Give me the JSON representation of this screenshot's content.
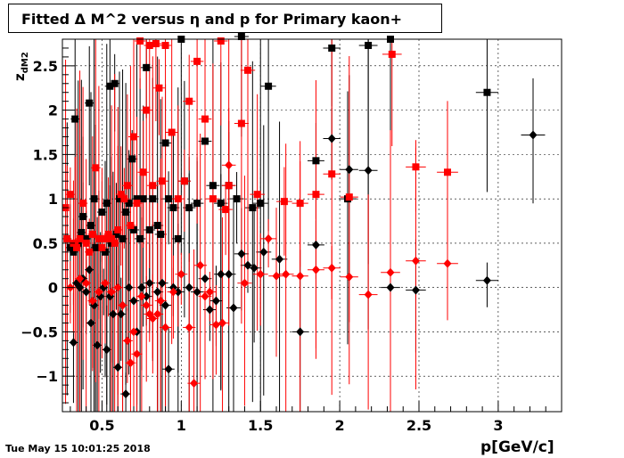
{
  "title": "Fitted Δ M^2 versus η and p for Primary kaon+",
  "timestamp": "Tue May 15 10:01:25 2018",
  "chart_data": {
    "type": "scatter",
    "xlabel": "p[GeV/c]",
    "ylabel": "z_dM2",
    "xlim": [
      0.25,
      3.4
    ],
    "ylim": [
      -1.4,
      2.8
    ],
    "xticks": [
      0.5,
      1,
      1.5,
      2,
      2.5,
      3
    ],
    "xtick_labels": [
      "0.5",
      "1",
      "1.5",
      "2",
      "2.5",
      "3"
    ],
    "yticks": [
      -1,
      -0.5,
      0,
      0.5,
      1,
      1.5,
      2,
      2.5
    ],
    "ytick_labels": [
      "−1",
      "−0.5",
      "0",
      "0.5",
      "1",
      "1.5",
      "2",
      "2.5"
    ],
    "grid": true,
    "colors": {
      "black": "#000000",
      "red": "#ff0000"
    },
    "series": [
      {
        "color": "black",
        "marker": "square",
        "points": [
          [
            0.28,
            0.55
          ],
          [
            0.3,
            0.45
          ],
          [
            0.32,
            0.4
          ],
          [
            0.33,
            1.9
          ],
          [
            0.35,
            0.5
          ],
          [
            0.37,
            0.62
          ],
          [
            0.38,
            0.8
          ],
          [
            0.4,
            0.55
          ],
          [
            0.42,
            2.08
          ],
          [
            0.43,
            0.7
          ],
          [
            0.45,
            1.0
          ],
          [
            0.46,
            0.45
          ],
          [
            0.48,
            0.55
          ],
          [
            0.5,
            0.85
          ],
          [
            0.52,
            0.4
          ],
          [
            0.53,
            0.95
          ],
          [
            0.55,
            2.27
          ],
          [
            0.56,
            0.5
          ],
          [
            0.58,
            2.3
          ],
          [
            0.59,
            0.6
          ],
          [
            0.61,
            1.0
          ],
          [
            0.63,
            0.55
          ],
          [
            0.65,
            0.85
          ],
          [
            0.67,
            0.95
          ],
          [
            0.69,
            1.45
          ],
          [
            0.7,
            0.65
          ],
          [
            0.72,
            1.0
          ],
          [
            0.74,
            0.55
          ],
          [
            0.76,
            1.0
          ],
          [
            0.78,
            2.48
          ],
          [
            0.8,
            0.65
          ],
          [
            0.82,
            1.0
          ],
          [
            0.85,
            0.7
          ],
          [
            0.87,
            0.6
          ],
          [
            0.9,
            1.63
          ],
          [
            0.92,
            1.0
          ],
          [
            0.95,
            0.9
          ],
          [
            0.98,
            0.55
          ],
          [
            1.0,
            2.8
          ],
          [
            1.02,
            1.2
          ],
          [
            1.05,
            0.9
          ],
          [
            1.1,
            0.95
          ],
          [
            1.15,
            1.65
          ],
          [
            1.2,
            1.15
          ],
          [
            1.25,
            0.95
          ],
          [
            1.3,
            1.15
          ],
          [
            1.35,
            1.0
          ],
          [
            1.38,
            2.83
          ],
          [
            1.45,
            0.9
          ],
          [
            1.5,
            0.95
          ],
          [
            1.55,
            2.27
          ],
          [
            1.85,
            1.43
          ],
          [
            1.95,
            2.7
          ],
          [
            2.05,
            1.0
          ],
          [
            2.18,
            2.73
          ],
          [
            2.32,
            2.8
          ],
          [
            2.93,
            2.2
          ]
        ]
      },
      {
        "color": "black",
        "marker": "diamond",
        "points": [
          [
            0.32,
            -0.62
          ],
          [
            0.34,
            0.05
          ],
          [
            0.36,
            0.0
          ],
          [
            0.38,
            0.1
          ],
          [
            0.4,
            -0.05
          ],
          [
            0.42,
            0.2
          ],
          [
            0.43,
            -0.4
          ],
          [
            0.45,
            -0.2
          ],
          [
            0.47,
            -0.65
          ],
          [
            0.49,
            -0.1
          ],
          [
            0.51,
            0.0
          ],
          [
            0.53,
            -0.7
          ],
          [
            0.55,
            -0.1
          ],
          [
            0.57,
            -0.3
          ],
          [
            0.6,
            -0.9
          ],
          [
            0.62,
            -0.3
          ],
          [
            0.65,
            -1.2
          ],
          [
            0.67,
            0.0
          ],
          [
            0.7,
            -0.15
          ],
          [
            0.72,
            -0.5
          ],
          [
            0.75,
            0.0
          ],
          [
            0.78,
            -0.1
          ],
          [
            0.8,
            0.05
          ],
          [
            0.85,
            -0.05
          ],
          [
            0.88,
            0.05
          ],
          [
            0.9,
            -0.2
          ],
          [
            0.92,
            -0.92
          ],
          [
            0.95,
            0.0
          ],
          [
            0.98,
            -0.05
          ],
          [
            1.05,
            0.0
          ],
          [
            1.1,
            -0.05
          ],
          [
            1.15,
            0.1
          ],
          [
            1.18,
            -0.25
          ],
          [
            1.22,
            -0.15
          ],
          [
            1.25,
            0.15
          ],
          [
            1.3,
            0.15
          ],
          [
            1.33,
            -0.23
          ],
          [
            1.38,
            0.38
          ],
          [
            1.42,
            0.25
          ],
          [
            1.46,
            0.22
          ],
          [
            1.52,
            0.4
          ],
          [
            1.62,
            0.32
          ],
          [
            1.75,
            -0.5
          ],
          [
            1.85,
            0.48
          ],
          [
            1.95,
            1.68
          ],
          [
            2.06,
            1.33
          ],
          [
            2.18,
            1.32
          ],
          [
            2.32,
            0.0
          ],
          [
            2.48,
            -0.03
          ],
          [
            2.93,
            0.08
          ],
          [
            3.22,
            1.72
          ]
        ]
      },
      {
        "color": "red",
        "marker": "square",
        "points": [
          [
            0.27,
            0.9
          ],
          [
            0.28,
            0.55
          ],
          [
            0.3,
            1.05
          ],
          [
            0.32,
            0.5
          ],
          [
            0.34,
            0.45
          ],
          [
            0.36,
            0.55
          ],
          [
            0.38,
            0.95
          ],
          [
            0.4,
            0.5
          ],
          [
            0.42,
            0.4
          ],
          [
            0.44,
            0.6
          ],
          [
            0.46,
            1.35
          ],
          [
            0.48,
            0.55
          ],
          [
            0.5,
            0.45
          ],
          [
            0.52,
            0.55
          ],
          [
            0.54,
            0.6
          ],
          [
            0.56,
            0.55
          ],
          [
            0.58,
            0.5
          ],
          [
            0.6,
            0.65
          ],
          [
            0.62,
            1.05
          ],
          [
            0.64,
            1.0
          ],
          [
            0.66,
            1.15
          ],
          [
            0.68,
            0.7
          ],
          [
            0.7,
            1.7
          ],
          [
            0.72,
            0.95
          ],
          [
            0.74,
            2.78
          ],
          [
            0.76,
            1.3
          ],
          [
            0.78,
            2.0
          ],
          [
            0.8,
            2.73
          ],
          [
            0.82,
            1.15
          ],
          [
            0.84,
            2.75
          ],
          [
            0.86,
            2.25
          ],
          [
            0.88,
            1.2
          ],
          [
            0.9,
            2.73
          ],
          [
            0.94,
            1.75
          ],
          [
            0.98,
            1.0
          ],
          [
            1.02,
            1.2
          ],
          [
            1.05,
            2.1
          ],
          [
            1.1,
            2.55
          ],
          [
            1.15,
            1.9
          ],
          [
            1.2,
            1.0
          ],
          [
            1.25,
            2.78
          ],
          [
            1.28,
            0.88
          ],
          [
            1.3,
            1.15
          ],
          [
            1.38,
            1.85
          ],
          [
            1.42,
            2.45
          ],
          [
            1.48,
            1.05
          ],
          [
            1.65,
            0.97
          ],
          [
            1.75,
            0.95
          ],
          [
            1.85,
            1.05
          ],
          [
            1.95,
            1.28
          ],
          [
            2.06,
            1.02
          ],
          [
            2.33,
            2.63
          ],
          [
            2.48,
            1.36
          ],
          [
            2.68,
            1.3
          ]
        ]
      },
      {
        "color": "red",
        "marker": "diamond",
        "points": [
          [
            0.3,
            0.0
          ],
          [
            0.33,
            0.5
          ],
          [
            0.36,
            0.1
          ],
          [
            0.4,
            0.05
          ],
          [
            0.44,
            -0.15
          ],
          [
            0.48,
            -0.05
          ],
          [
            0.52,
            0.05
          ],
          [
            0.56,
            -0.05
          ],
          [
            0.6,
            0.0
          ],
          [
            0.63,
            -0.2
          ],
          [
            0.66,
            -0.6
          ],
          [
            0.68,
            -0.85
          ],
          [
            0.7,
            -0.5
          ],
          [
            0.72,
            -0.75
          ],
          [
            0.75,
            -0.1
          ],
          [
            0.78,
            -0.2
          ],
          [
            0.8,
            -0.3
          ],
          [
            0.82,
            -0.35
          ],
          [
            0.85,
            -0.3
          ],
          [
            0.87,
            -0.15
          ],
          [
            0.9,
            -0.45
          ],
          [
            0.95,
            -0.05
          ],
          [
            1.0,
            0.15
          ],
          [
            1.05,
            -0.45
          ],
          [
            1.08,
            -1.08
          ],
          [
            1.12,
            0.25
          ],
          [
            1.15,
            -0.1
          ],
          [
            1.18,
            -0.05
          ],
          [
            1.22,
            -0.42
          ],
          [
            1.26,
            -0.4
          ],
          [
            1.3,
            1.38
          ],
          [
            1.4,
            0.05
          ],
          [
            1.5,
            0.15
          ],
          [
            1.55,
            0.55
          ],
          [
            1.6,
            0.13
          ],
          [
            1.66,
            0.15
          ],
          [
            1.75,
            0.13
          ],
          [
            1.85,
            0.2
          ],
          [
            1.95,
            0.22
          ],
          [
            2.06,
            0.12
          ],
          [
            2.18,
            -0.08
          ],
          [
            2.32,
            0.17
          ],
          [
            2.48,
            0.3
          ],
          [
            2.68,
            0.27
          ]
        ]
      }
    ]
  }
}
